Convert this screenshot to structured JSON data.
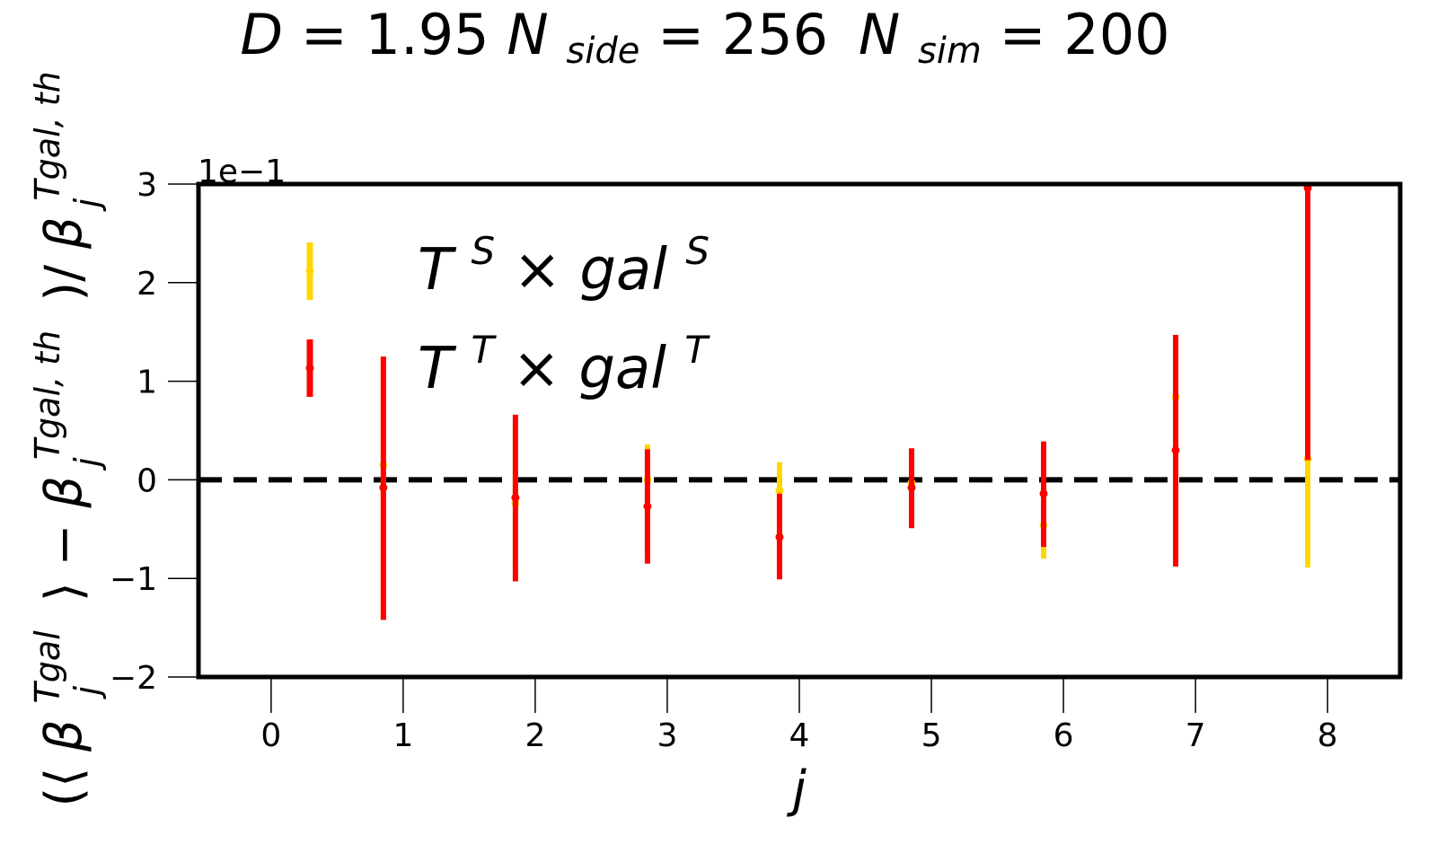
{
  "chart_data": {
    "type": "errorbar",
    "title": {
      "d_label": "D",
      "d_value": "1.95",
      "nside_label": "N",
      "nside_sub": "side",
      "nside_value": "256",
      "nsim_label": "N",
      "nsim_sub": "sim",
      "nsim_value": "200",
      "eq": "="
    },
    "xlabel": "j",
    "ylabel": {
      "open_paren": "(⟨",
      "beta": "β",
      "sup": "Tgal",
      "sub": "j",
      "close_angle": "⟩",
      "minus": "−",
      "sup_th": "Tgal, th",
      "slash": ")/"
    },
    "y_multiplier": "1e−1",
    "xlim": [
      -0.55,
      8.55
    ],
    "ylim": [
      -2,
      3
    ],
    "x_ticks": [
      0,
      1,
      2,
      3,
      4,
      5,
      6,
      7,
      8
    ],
    "y_ticks": [
      -2,
      -1,
      0,
      1,
      2,
      3
    ],
    "y_tick_labels": [
      "−2",
      "−1",
      "0",
      "1",
      "2",
      "3"
    ],
    "reference_line": 0,
    "legend_position": "upper-left",
    "series": [
      {
        "name": "T^S × gal^S",
        "legend_main1": "T",
        "legend_sup1": "S",
        "legend_times": " × ",
        "legend_main2": "gal",
        "legend_sup2": "S",
        "color": "#FFD700",
        "points": [
          {
            "x": 0.85,
            "y": 0.15,
            "lo": -1.42,
            "hi": 1.25
          },
          {
            "x": 1.85,
            "y": -0.24,
            "lo": -0.94,
            "hi": 0.56
          },
          {
            "x": 2.85,
            "y": 0.0,
            "lo": -0.78,
            "hi": 0.36
          },
          {
            "x": 3.85,
            "y": -0.11,
            "lo": -0.92,
            "hi": 0.18
          },
          {
            "x": 4.85,
            "y": -0.03,
            "lo": -0.42,
            "hi": 0.3
          },
          {
            "x": 5.85,
            "y": -0.46,
            "lo": -0.8,
            "hi": 0.38
          },
          {
            "x": 6.85,
            "y": 0.84,
            "lo": -0.82,
            "hi": 1.47
          },
          {
            "x": 7.85,
            "y": 0.21,
            "lo": -0.89,
            "hi": 0.93
          }
        ]
      },
      {
        "name": "T^T × gal^T",
        "legend_main1": "T",
        "legend_sup1": "T",
        "legend_times": " × ",
        "legend_main2": "gal",
        "legend_sup2": "T",
        "color": "#FF0000",
        "points": [
          {
            "x": 0.85,
            "y": -0.08,
            "lo": -1.42,
            "hi": 1.25
          },
          {
            "x": 1.85,
            "y": -0.18,
            "lo": -1.03,
            "hi": 0.66
          },
          {
            "x": 2.85,
            "y": -0.27,
            "lo": -0.85,
            "hi": 0.31
          },
          {
            "x": 3.85,
            "y": -0.58,
            "lo": -1.01,
            "hi": -0.14
          },
          {
            "x": 4.85,
            "y": -0.08,
            "lo": -0.49,
            "hi": 0.32
          },
          {
            "x": 5.85,
            "y": -0.14,
            "lo": -0.68,
            "hi": 0.39
          },
          {
            "x": 6.85,
            "y": 0.3,
            "lo": -0.88,
            "hi": 1.47
          },
          {
            "x": 7.85,
            "y": 2.96,
            "lo": 0.2,
            "hi": 2.96
          }
        ]
      }
    ]
  }
}
